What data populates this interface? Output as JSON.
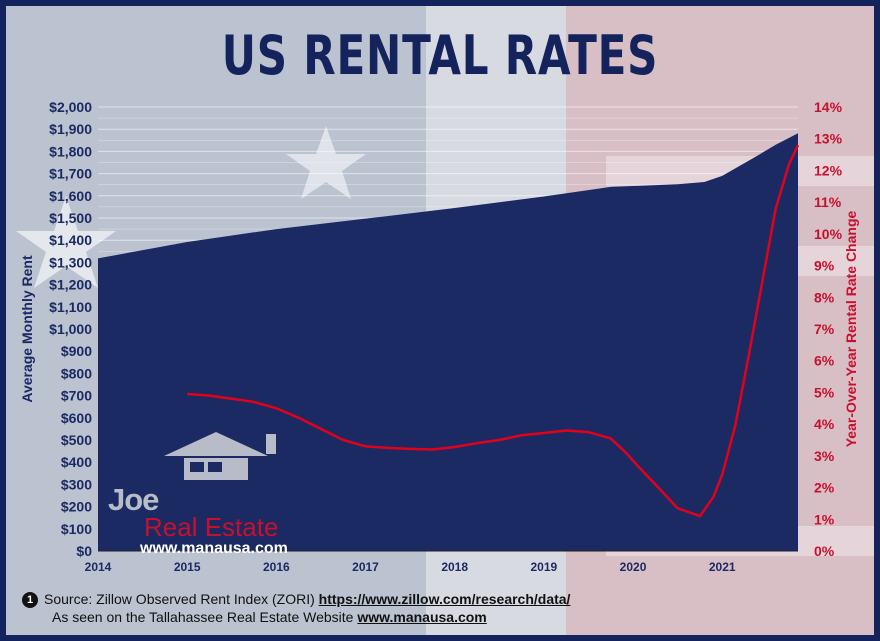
{
  "title": "US RENTAL RATES",
  "chart_data": {
    "type": "area",
    "title": "US RENTAL RATES",
    "xlabel": "",
    "ylabel": "Average Monthly Rent",
    "y2label": "Year-Over-Year Rental Rate Change",
    "x_ticks": [
      "2014",
      "2015",
      "2016",
      "2017",
      "2018",
      "2019",
      "2020",
      "2021"
    ],
    "xlim": [
      2014,
      2021.85
    ],
    "ylim": [
      0,
      2000
    ],
    "y_ticks": [
      "$0",
      "$100",
      "$200",
      "$300",
      "$400",
      "$500",
      "$600",
      "$700",
      "$800",
      "$900",
      "$1,000",
      "$1,100",
      "$1,200",
      "$1,300",
      "$1,400",
      "$1,500",
      "$1,600",
      "$1,700",
      "$1,800",
      "$1,900",
      "$2,000"
    ],
    "y2lim": [
      0,
      14
    ],
    "y2_ticks": [
      "0%",
      "1%",
      "2%",
      "3%",
      "4%",
      "5%",
      "6%",
      "7%",
      "8%",
      "9%",
      "10%",
      "11%",
      "12%",
      "13%",
      "14%"
    ],
    "grid": true,
    "series": [
      {
        "axis": "left",
        "kind": "area",
        "color": "#1b2a63",
        "x": [
          2014.0,
          2015.0,
          2016.0,
          2017.0,
          2018.0,
          2019.0,
          2019.75,
          2020.5,
          2020.8,
          2021.0,
          2021.35,
          2021.6,
          2021.85
        ],
        "y": [
          1318,
          1392,
          1450,
          1497,
          1545,
          1597,
          1640,
          1652,
          1662,
          1690,
          1770,
          1830,
          1882
        ]
      },
      {
        "axis": "right",
        "kind": "line",
        "color": "#e3001b",
        "x": [
          2015.0,
          2015.25,
          2015.5,
          2015.75,
          2016.0,
          2016.25,
          2016.5,
          2016.75,
          2017.0,
          2017.25,
          2017.5,
          2017.75,
          2018.0,
          2018.25,
          2018.5,
          2018.75,
          2019.0,
          2019.25,
          2019.5,
          2019.75,
          2019.92,
          2020.08,
          2020.25,
          2020.5,
          2020.75,
          2020.9,
          2021.0,
          2021.15,
          2021.3,
          2021.45,
          2021.6,
          2021.75,
          2021.85
        ],
        "y": [
          4.95,
          4.9,
          4.8,
          4.7,
          4.5,
          4.2,
          3.85,
          3.5,
          3.3,
          3.25,
          3.22,
          3.2,
          3.28,
          3.4,
          3.5,
          3.65,
          3.72,
          3.8,
          3.75,
          3.55,
          3.1,
          2.6,
          2.1,
          1.35,
          1.1,
          1.7,
          2.4,
          4.0,
          6.2,
          8.5,
          10.8,
          12.2,
          12.8
        ]
      }
    ]
  },
  "logo": {
    "joe": "Joe",
    "manausa": "Manausa",
    "real_estate": "Real Estate",
    "url": "www.manausa.com"
  },
  "footer": {
    "badge": "1",
    "source": "Source: Zillow Observed Rent Index (ZORI)",
    "link": "https://www.zillow.com/research/data/",
    "seen_on": "As seen on the Tallahassee Real Estate Website",
    "site": "www.manausa.com"
  },
  "colors": {
    "navy": "#1b2a63",
    "red": "#e3001b",
    "axis_red": "#c8102e"
  }
}
